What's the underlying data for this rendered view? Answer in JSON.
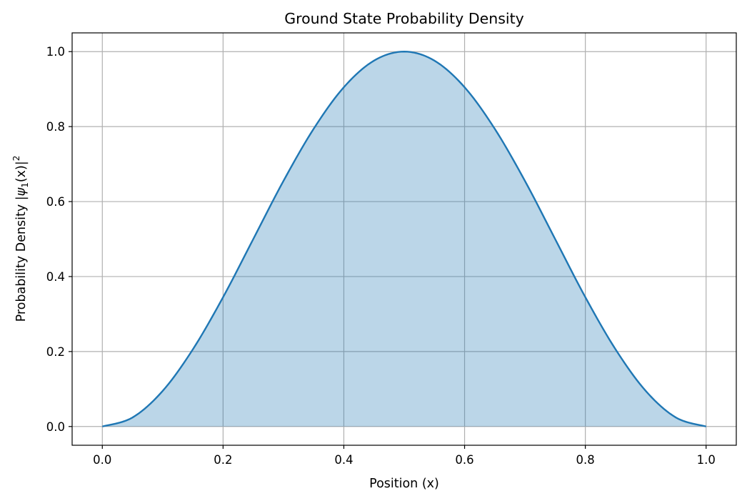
{
  "chart_data": {
    "type": "area",
    "title": "Ground State Probability Density",
    "xlabel": "Position (x)",
    "ylabel": {
      "prefix": "Probability Density |",
      "psi": "ψ",
      "sub": "1",
      "mid": "(x)|",
      "sup": "2"
    },
    "xlim": [
      -0.05,
      1.05
    ],
    "ylim": [
      -0.05,
      1.05
    ],
    "x_ticks": [
      0.0,
      0.2,
      0.4,
      0.6,
      0.8,
      1.0
    ],
    "x_tick_labels": [
      "0.0",
      "0.2",
      "0.4",
      "0.6",
      "0.8",
      "1.0"
    ],
    "y_ticks": [
      0.0,
      0.2,
      0.4,
      0.6,
      0.8,
      1.0
    ],
    "y_tick_labels": [
      "0.0",
      "0.2",
      "0.4",
      "0.6",
      "0.8",
      "1.0"
    ],
    "grid": true,
    "series": [
      {
        "x": [
          0.0,
          0.05,
          0.1,
          0.15,
          0.2,
          0.25,
          0.3,
          0.35,
          0.4,
          0.45,
          0.5,
          0.55,
          0.6,
          0.65,
          0.7,
          0.75,
          0.8,
          0.85,
          0.9,
          0.95,
          1.0
        ],
        "y": [
          0.0,
          0.024,
          0.095,
          0.206,
          0.345,
          0.5,
          0.655,
          0.794,
          0.905,
          0.976,
          1.0,
          0.976,
          0.905,
          0.794,
          0.655,
          0.5,
          0.345,
          0.206,
          0.095,
          0.024,
          0.0
        ],
        "line_color": "#1f77b4",
        "fill_color": "#1f77b4",
        "fill_opacity": 0.3
      }
    ]
  }
}
